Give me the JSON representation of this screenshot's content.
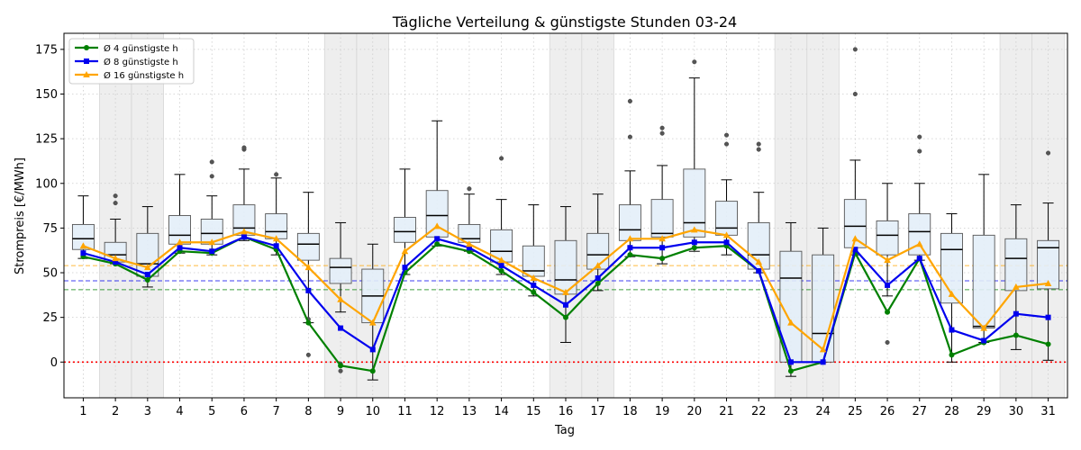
{
  "chart_data": {
    "type": "box",
    "title": "Tägliche Verteilung & günstigste Stunden 03-24",
    "xlabel": "Tag",
    "ylabel": "Strompreis [€/MWh]",
    "ylim": [
      -20,
      184
    ],
    "yticks": [
      0,
      25,
      50,
      75,
      100,
      125,
      150,
      175
    ],
    "grid": "dotted",
    "legend_position": "top-left",
    "categories": [
      "1",
      "2",
      "3",
      "4",
      "5",
      "6",
      "7",
      "8",
      "9",
      "10",
      "11",
      "12",
      "13",
      "14",
      "15",
      "16",
      "17",
      "18",
      "19",
      "20",
      "21",
      "22",
      "23",
      "24",
      "25",
      "26",
      "27",
      "28",
      "29",
      "30",
      "31"
    ],
    "weekend_days": [
      2,
      3,
      9,
      10,
      16,
      17,
      23,
      24,
      30,
      31
    ],
    "boxes": [
      {
        "lo": 58,
        "q1": 63,
        "med": 69,
        "q3": 77,
        "hi": 93,
        "fliers": []
      },
      {
        "lo": 55,
        "q1": 56,
        "med": 60,
        "q3": 67,
        "hi": 80,
        "fliers": [
          89,
          93
        ]
      },
      {
        "lo": 42,
        "q1": 48,
        "med": 55,
        "q3": 72,
        "hi": 87,
        "fliers": []
      },
      {
        "lo": 61,
        "q1": 66,
        "med": 71,
        "q3": 82,
        "hi": 105,
        "fliers": []
      },
      {
        "lo": 60,
        "q1": 66,
        "med": 72,
        "q3": 80,
        "hi": 93,
        "fliers": [
          104,
          112
        ]
      },
      {
        "lo": 68,
        "q1": 71,
        "med": 75,
        "q3": 88,
        "hi": 108,
        "fliers": [
          119,
          120
        ]
      },
      {
        "lo": 60,
        "q1": 69,
        "med": 73,
        "q3": 83,
        "hi": 103,
        "fliers": [
          105
        ]
      },
      {
        "lo": 22,
        "q1": 57,
        "med": 66,
        "q3": 72,
        "hi": 95,
        "fliers": [
          4,
          22,
          24
        ]
      },
      {
        "lo": 28,
        "q1": 44,
        "med": 53,
        "q3": 58,
        "hi": 78,
        "fliers": [
          -1,
          -5
        ]
      },
      {
        "lo": -10,
        "q1": 22,
        "med": 37,
        "q3": 52,
        "hi": 66,
        "fliers": []
      },
      {
        "lo": 49,
        "q1": 67,
        "med": 73,
        "q3": 81,
        "hi": 108,
        "fliers": []
      },
      {
        "lo": 65,
        "q1": 70,
        "med": 82,
        "q3": 96,
        "hi": 135,
        "fliers": []
      },
      {
        "lo": 62,
        "q1": 67,
        "med": 69,
        "q3": 77,
        "hi": 94,
        "fliers": [
          97
        ]
      },
      {
        "lo": 49,
        "q1": 56,
        "med": 62,
        "q3": 74,
        "hi": 91,
        "fliers": [
          114
        ]
      },
      {
        "lo": 37,
        "q1": 48,
        "med": 51,
        "q3": 65,
        "hi": 88,
        "fliers": []
      },
      {
        "lo": 11,
        "q1": 38,
        "med": 46,
        "q3": 68,
        "hi": 87,
        "fliers": []
      },
      {
        "lo": 40,
        "q1": 52,
        "med": 60,
        "q3": 72,
        "hi": 94,
        "fliers": []
      },
      {
        "lo": 59,
        "q1": 68,
        "med": 74,
        "q3": 88,
        "hi": 107,
        "fliers": [
          126,
          146
        ]
      },
      {
        "lo": 55,
        "q1": 70,
        "med": 72,
        "q3": 91,
        "hi": 110,
        "fliers": [
          128,
          131
        ]
      },
      {
        "lo": 62,
        "q1": 70,
        "med": 78,
        "q3": 108,
        "hi": 159,
        "fliers": [
          168
        ]
      },
      {
        "lo": 60,
        "q1": 71,
        "med": 75,
        "q3": 90,
        "hi": 102,
        "fliers": [
          122,
          127
        ]
      },
      {
        "lo": 50,
        "q1": 52,
        "med": 60,
        "q3": 78,
        "hi": 95,
        "fliers": [
          119,
          122
        ]
      },
      {
        "lo": -8,
        "q1": 0,
        "med": 47,
        "q3": 62,
        "hi": 78,
        "fliers": []
      },
      {
        "lo": 0,
        "q1": 0,
        "med": 16,
        "q3": 60,
        "hi": 75,
        "fliers": []
      },
      {
        "lo": 60,
        "q1": 64,
        "med": 76,
        "q3": 91,
        "hi": 113,
        "fliers": [
          150,
          175
        ]
      },
      {
        "lo": 37,
        "q1": 60,
        "med": 71,
        "q3": 79,
        "hi": 100,
        "fliers": [
          11
        ]
      },
      {
        "lo": 57,
        "q1": 60,
        "med": 73,
        "q3": 83,
        "hi": 100,
        "fliers": [
          118,
          126
        ]
      },
      {
        "lo": 0,
        "q1": 33,
        "med": 63,
        "q3": 72,
        "hi": 83,
        "fliers": []
      },
      {
        "lo": 11,
        "q1": 19,
        "med": 20,
        "q3": 71,
        "hi": 105,
        "fliers": []
      },
      {
        "lo": 7,
        "q1": 40,
        "med": 58,
        "q3": 69,
        "hi": 88,
        "fliers": []
      },
      {
        "lo": 1,
        "q1": 41,
        "med": 64,
        "q3": 68,
        "hi": 89,
        "fliers": [
          117
        ]
      }
    ],
    "series": [
      {
        "name": "Ø 4 günstigste h",
        "color": "#008000",
        "marker": "circle",
        "mean": 40.5,
        "values": [
          59,
          55,
          46,
          62,
          61,
          70,
          63,
          22,
          -2,
          -5,
          50,
          66,
          62,
          51,
          39,
          25,
          44,
          60,
          58,
          64,
          65,
          51,
          -5,
          0,
          61,
          28,
          58,
          4,
          11,
          15,
          10
        ]
      },
      {
        "name": "Ø 8 günstigste h",
        "color": "#0000ee",
        "marker": "square",
        "mean": 45.5,
        "values": [
          61,
          56,
          49,
          64,
          62,
          70,
          65,
          40,
          19,
          7,
          53,
          69,
          64,
          54,
          43,
          32,
          47,
          64,
          64,
          67,
          67,
          51,
          0,
          0,
          63,
          43,
          58,
          18,
          12,
          27,
          25
        ]
      },
      {
        "name": "Ø 16 günstigste h",
        "color": "#ffa500",
        "marker": "triangle",
        "mean": 54,
        "values": [
          65,
          58,
          53,
          67,
          67,
          73,
          69,
          53,
          35,
          22,
          62,
          76,
          66,
          57,
          47,
          39,
          54,
          69,
          69,
          74,
          71,
          56,
          22,
          7,
          69,
          57,
          66,
          38,
          19,
          42,
          44
        ]
      }
    ],
    "reference_line": {
      "value": 0,
      "color": "#ff0000",
      "style": "dotted"
    }
  }
}
